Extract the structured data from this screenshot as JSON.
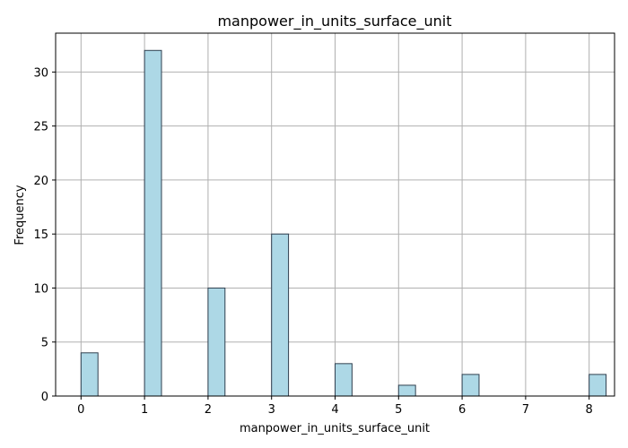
{
  "chart_data": {
    "type": "bar",
    "title": "manpower_in_units_surface_unit",
    "xlabel": "manpower_in_units_surface_unit",
    "ylabel": "Frequency",
    "x": [
      0,
      1,
      2,
      3,
      4,
      5,
      6,
      8
    ],
    "values": [
      4,
      32,
      10,
      15,
      3,
      1,
      2,
      2
    ],
    "bin_width": 0.2667,
    "xlim": [
      -0.4,
      8.4
    ],
    "ylim": [
      0,
      33.6
    ],
    "xticks": [
      0,
      1,
      2,
      3,
      4,
      5,
      6,
      7,
      8
    ],
    "yticks": [
      0,
      5,
      10,
      15,
      20,
      25,
      30
    ],
    "grid": true,
    "bar_color": "#add8e6",
    "edge_color": "#2f3f4f"
  }
}
